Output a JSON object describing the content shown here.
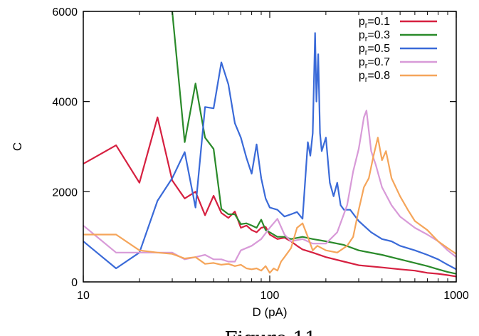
{
  "chart_data": {
    "type": "line",
    "xlabel": "D (pA)",
    "ylabel": "C",
    "x_scale": "log",
    "xlim": [
      10,
      1000
    ],
    "ylim": [
      0,
      6000
    ],
    "x_ticks": [
      10,
      100,
      1000
    ],
    "x_tick_labels": [
      "10",
      "100",
      "1000"
    ],
    "y_ticks": [
      0,
      2000,
      4000,
      6000
    ],
    "y_tick_labels": [
      "0",
      "2000",
      "4000",
      "6000"
    ],
    "legend_position": "top-right",
    "caption": "Figure 11",
    "series": [
      {
        "name_base": "p",
        "name_sub": "r",
        "name_rest": "=0.1",
        "color": "#d62040",
        "x": [
          10,
          15,
          20,
          25,
          30,
          35,
          40,
          45,
          50,
          55,
          60,
          65,
          70,
          75,
          80,
          85,
          90,
          95,
          100,
          110,
          120,
          130,
          140,
          150,
          170,
          200,
          250,
          300,
          400,
          500,
          600,
          700,
          800,
          900,
          1000
        ],
        "y": [
          2620,
          3030,
          2200,
          3650,
          2250,
          1850,
          2000,
          1480,
          1910,
          1530,
          1420,
          1560,
          1200,
          1250,
          1150,
          1100,
          1200,
          1220,
          1050,
          950,
          980,
          900,
          800,
          720,
          650,
          550,
          450,
          370,
          320,
          280,
          250,
          200,
          180,
          150,
          120
        ]
      },
      {
        "name_base": "p",
        "name_sub": "r",
        "name_rest": "=0.3",
        "color": "#2a8a2a",
        "x": [
          30,
          35,
          40,
          45,
          50,
          55,
          60,
          65,
          70,
          75,
          80,
          85,
          90,
          95,
          100,
          110,
          120,
          130,
          150,
          170,
          200,
          250,
          300,
          400,
          500,
          600,
          700,
          800,
          900,
          1000
        ],
        "y": [
          6000,
          3100,
          4400,
          3200,
          2950,
          1620,
          1500,
          1500,
          1280,
          1300,
          1250,
          1200,
          1380,
          1150,
          1100,
          1000,
          1000,
          950,
          1000,
          950,
          900,
          820,
          700,
          600,
          500,
          420,
          350,
          280,
          220,
          180
        ]
      },
      {
        "name_base": "p",
        "name_sub": "r",
        "name_rest": "=0.5",
        "color": "#3a6ad8",
        "x": [
          10,
          15,
          20,
          25,
          30,
          35,
          40,
          45,
          50,
          55,
          60,
          65,
          70,
          75,
          80,
          85,
          90,
          95,
          100,
          110,
          120,
          130,
          140,
          150,
          160,
          165,
          170,
          175,
          178,
          182,
          186,
          190,
          200,
          210,
          220,
          230,
          240,
          250,
          270,
          300,
          350,
          400,
          450,
          500,
          600,
          700,
          800,
          900,
          1000
        ],
        "y": [
          900,
          300,
          650,
          1800,
          2300,
          2880,
          1650,
          3880,
          3850,
          4870,
          4380,
          3520,
          3200,
          2750,
          2400,
          3050,
          2300,
          1850,
          1650,
          1600,
          1450,
          1500,
          1550,
          1400,
          3100,
          2800,
          3300,
          5520,
          4000,
          5050,
          3300,
          2900,
          3200,
          2200,
          1900,
          2200,
          1700,
          1600,
          1600,
          1350,
          1100,
          950,
          900,
          800,
          700,
          600,
          500,
          380,
          280
        ]
      },
      {
        "name_base": "p",
        "name_sub": "r",
        "name_rest": "=0.7",
        "color": "#d89ad8",
        "x": [
          10,
          15,
          20,
          25,
          30,
          35,
          40,
          45,
          50,
          55,
          60,
          65,
          70,
          80,
          90,
          100,
          110,
          120,
          130,
          150,
          170,
          200,
          230,
          260,
          280,
          300,
          310,
          320,
          330,
          340,
          350,
          370,
          400,
          450,
          500,
          600,
          700,
          800,
          900,
          1000
        ],
        "y": [
          1250,
          650,
          650,
          650,
          650,
          500,
          550,
          600,
          500,
          500,
          450,
          450,
          700,
          800,
          950,
          1200,
          1400,
          1050,
          900,
          950,
          850,
          850,
          1100,
          1700,
          2450,
          2950,
          3300,
          3650,
          3800,
          3350,
          2900,
          2600,
          2100,
          1700,
          1450,
          1200,
          1050,
          900,
          700,
          550
        ]
      },
      {
        "name_base": "p",
        "name_sub": "r",
        "name_rest": "=0.8",
        "color": "#f5a55a",
        "x": [
          10,
          15,
          20,
          25,
          30,
          35,
          40,
          45,
          50,
          55,
          60,
          65,
          70,
          75,
          80,
          85,
          90,
          95,
          100,
          105,
          110,
          115,
          120,
          130,
          140,
          150,
          160,
          170,
          180,
          200,
          230,
          260,
          280,
          300,
          320,
          340,
          360,
          380,
          400,
          420,
          450,
          500,
          550,
          600,
          700,
          800,
          900,
          1000
        ],
        "y": [
          1050,
          1050,
          700,
          650,
          620,
          520,
          550,
          400,
          420,
          380,
          400,
          350,
          380,
          300,
          280,
          300,
          250,
          350,
          200,
          300,
          250,
          450,
          550,
          750,
          1200,
          1300,
          1000,
          700,
          800,
          700,
          650,
          800,
          1000,
          1600,
          2100,
          2300,
          2800,
          3200,
          2700,
          2900,
          2300,
          1900,
          1600,
          1350,
          1150,
          900,
          750,
          620
        ]
      }
    ]
  }
}
